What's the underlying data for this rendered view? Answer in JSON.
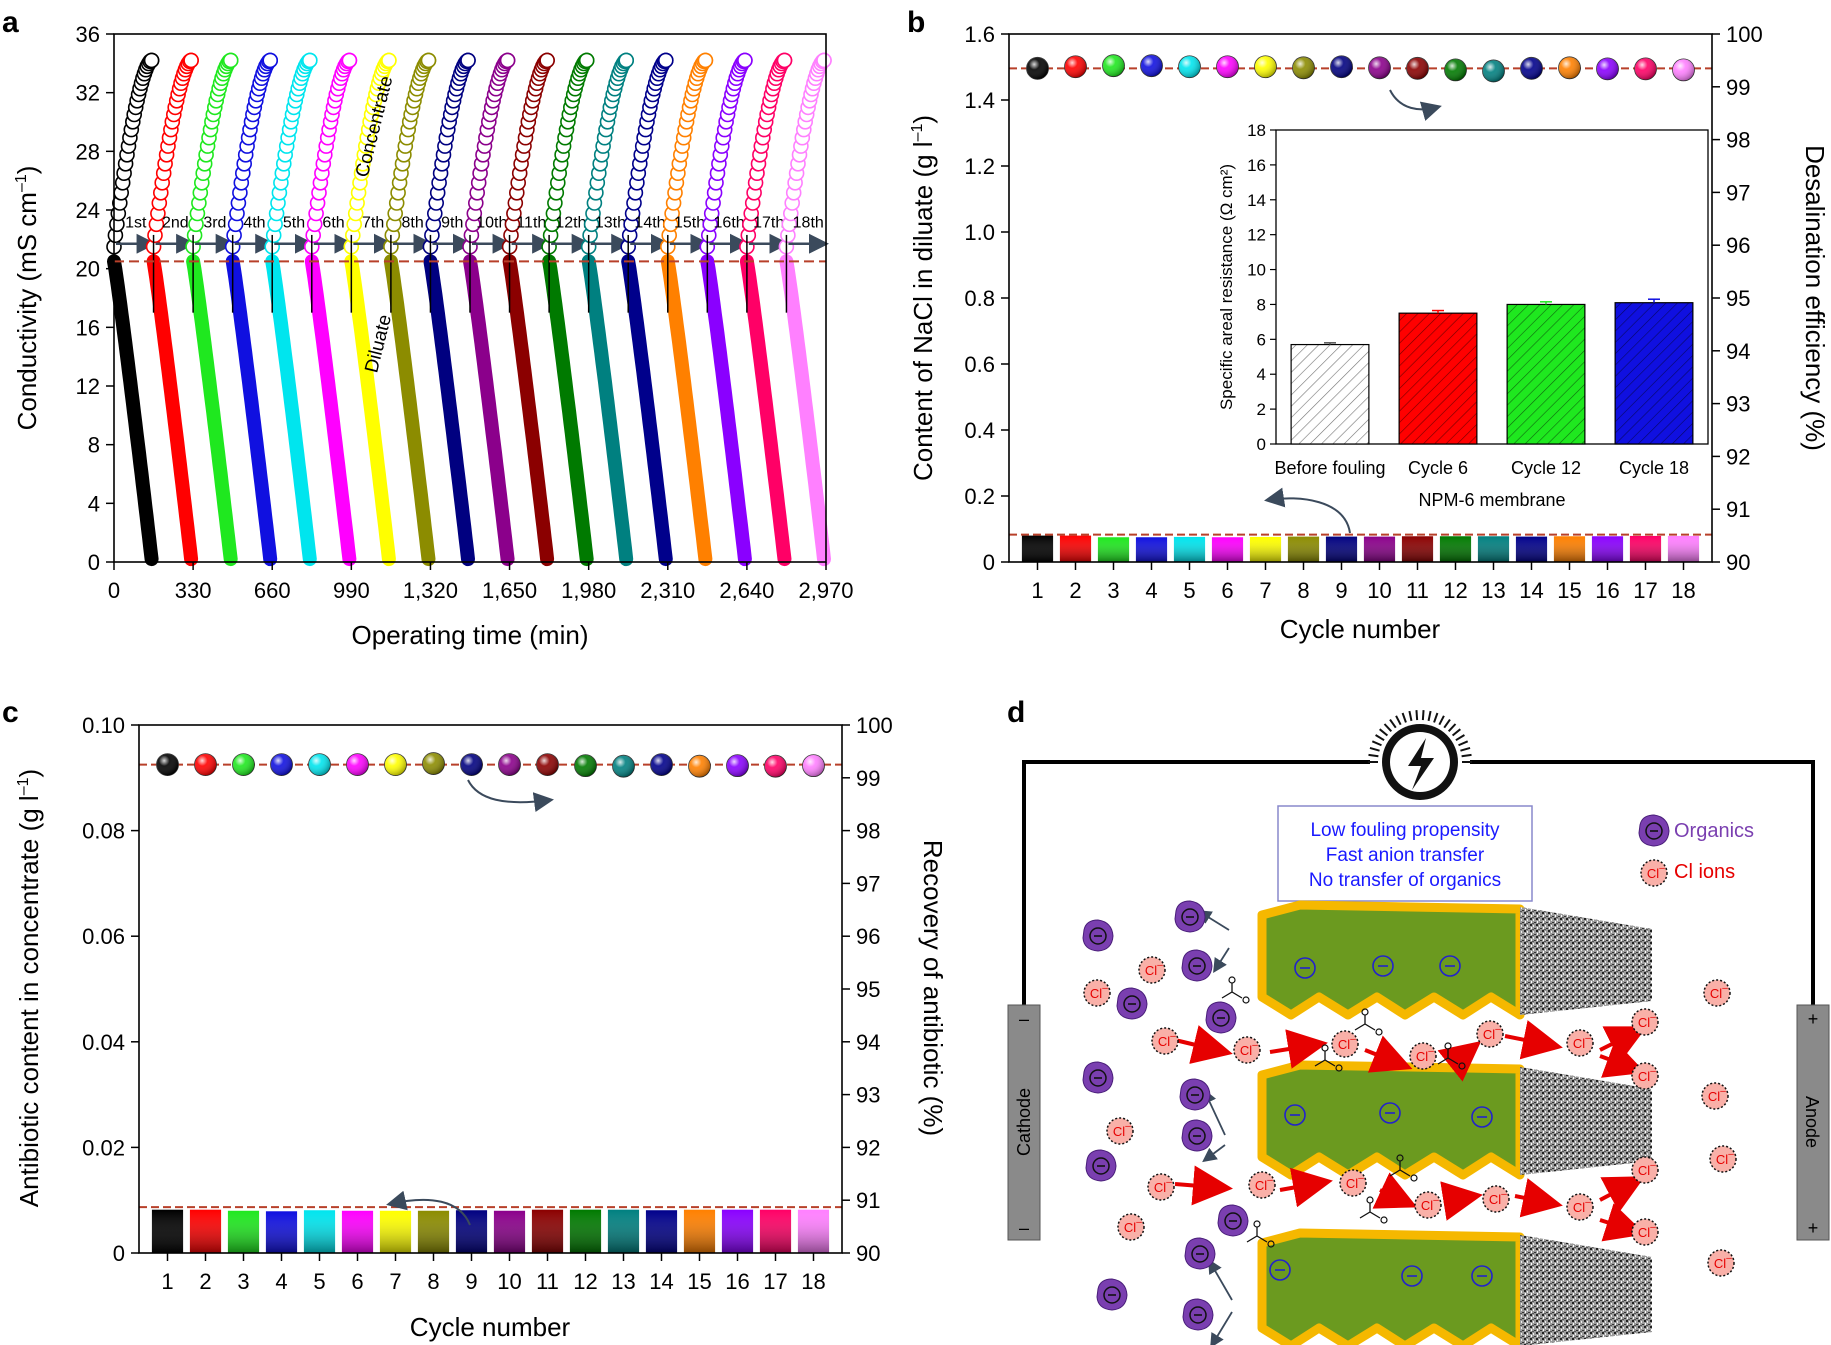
{
  "figure": {
    "panel_labels": [
      "a",
      "b",
      "c",
      "d"
    ]
  },
  "palette": [
    "#000000",
    "#ff0000",
    "#1fe81f",
    "#1010e0",
    "#00e5ee",
    "#ff00ff",
    "#ffff00",
    "#8c8c00",
    "#000080",
    "#8b008b",
    "#8b0000",
    "#007a00",
    "#008080",
    "#00008b",
    "#ff8000",
    "#8a00ff",
    "#ff0066",
    "#ff80ff"
  ],
  "chart_data": [
    {
      "id": "a",
      "type": "line",
      "xlabel": "Operating time (min)",
      "ylabel": "Conductivity (mS cm",
      "ylabel_sup": "–1",
      "ylabel_close": ")",
      "xlim": [
        0,
        2970
      ],
      "ylim": [
        0,
        36
      ],
      "xticks": [
        0,
        330,
        660,
        990,
        1320,
        1650,
        1980,
        2310,
        2640,
        2970
      ],
      "xtick_labels": [
        "0",
        "330",
        "660",
        "990",
        "1,320",
        "1,650",
        "1,980",
        "2,310",
        "2,640",
        "2,970"
      ],
      "yticks": [
        0,
        4,
        8,
        12,
        16,
        20,
        24,
        28,
        32,
        36
      ],
      "cycle_labels": [
        "1st",
        "2nd",
        "3rd",
        "4th",
        "5th",
        "6th",
        "7th",
        "8th",
        "9th",
        "10th",
        "11th",
        "12th",
        "13th",
        "14th",
        "15th",
        "16th",
        "17th",
        "18th"
      ],
      "cycle_duration_min": 165,
      "concentrate": {
        "start": 21.5,
        "end": 34.2
      },
      "diluate": {
        "start": 20.5,
        "end": 0.2
      },
      "reference_line_y": 20.5,
      "annotations": {
        "concentrate": "Concentrate",
        "diluate": "Diluate"
      }
    },
    {
      "id": "b",
      "type": "bar",
      "xlabel": "Cycle number",
      "ylabel_left": "Content of NaCl in diluate (g l",
      "ylabel_left_sup": "–1",
      "ylabel_left_close": ")",
      "ylabel_right": "Desalination efficiency (%)",
      "categories": [
        "1",
        "2",
        "3",
        "4",
        "5",
        "6",
        "7",
        "8",
        "9",
        "10",
        "11",
        "12",
        "13",
        "14",
        "15",
        "16",
        "17",
        "18"
      ],
      "ylim_left": [
        0,
        1.6
      ],
      "yticks_left": [
        0,
        0.2,
        0.4,
        0.6,
        0.8,
        1.0,
        1.2,
        1.4,
        1.6
      ],
      "ytick_labels_left": [
        "0",
        "0.2",
        "0.4",
        "0.6",
        "0.8",
        "1.0",
        "1.2",
        "1.4",
        "1.6"
      ],
      "ylim_right": [
        90,
        100
      ],
      "yticks_right": [
        90,
        91,
        92,
        93,
        94,
        95,
        96,
        97,
        98,
        99,
        100
      ],
      "bar_values": [
        0.08,
        0.08,
        0.075,
        0.075,
        0.076,
        0.075,
        0.076,
        0.077,
        0.077,
        0.077,
        0.078,
        0.078,
        0.078,
        0.077,
        0.078,
        0.078,
        0.079,
        0.079
      ],
      "bar_ref_line": 0.083,
      "efficiency_values": [
        99.35,
        99.38,
        99.4,
        99.4,
        99.38,
        99.38,
        99.38,
        99.36,
        99.38,
        99.36,
        99.35,
        99.32,
        99.3,
        99.35,
        99.36,
        99.34,
        99.34,
        99.32
      ],
      "efficiency_ref_line": 99.35,
      "inset": {
        "type": "bar",
        "ylabel": "Specific areal resistance (Ω cm²)",
        "xlabel": "NPM-6 membrane",
        "categories": [
          "Before fouling",
          "Cycle 6",
          "Cycle 12",
          "Cycle 18"
        ],
        "values": [
          5.7,
          7.5,
          8.0,
          8.1
        ],
        "errors": [
          0.1,
          0.15,
          0.15,
          0.2
        ],
        "colors": [
          "#ffffff",
          "#ff0000",
          "#1fe81f",
          "#1010e0"
        ],
        "ylim": [
          0,
          18
        ],
        "yticks": [
          0,
          2,
          4,
          6,
          8,
          10,
          12,
          14,
          16,
          18
        ]
      }
    },
    {
      "id": "c",
      "type": "bar",
      "xlabel": "Cycle number",
      "ylabel_left": "Antibiotic content in concentrate (g l",
      "ylabel_left_sup": "–1",
      "ylabel_left_close": ")",
      "ylabel_right": "Recovery of antibiotic (%)",
      "categories": [
        "1",
        "2",
        "3",
        "4",
        "5",
        "6",
        "7",
        "8",
        "9",
        "10",
        "11",
        "12",
        "13",
        "14",
        "15",
        "16",
        "17",
        "18"
      ],
      "ylim_left": [
        0,
        0.1
      ],
      "yticks_left": [
        0,
        0.02,
        0.04,
        0.06,
        0.08,
        0.1
      ],
      "ytick_labels_left": [
        "0",
        "0.02",
        "0.04",
        "0.06",
        "0.08",
        "0.10"
      ],
      "ylim_right": [
        90,
        100
      ],
      "yticks_right": [
        90,
        91,
        92,
        93,
        94,
        95,
        96,
        97,
        98,
        99,
        100
      ],
      "bar_values": [
        0.0082,
        0.0082,
        0.008,
        0.0079,
        0.0081,
        0.008,
        0.008,
        0.008,
        0.0081,
        0.008,
        0.0082,
        0.0082,
        0.0082,
        0.0081,
        0.0082,
        0.0082,
        0.0082,
        0.0082
      ],
      "bar_ref_line": 0.0087,
      "recovery_values": [
        99.25,
        99.25,
        99.25,
        99.25,
        99.25,
        99.25,
        99.25,
        99.27,
        99.25,
        99.25,
        99.25,
        99.23,
        99.22,
        99.25,
        99.22,
        99.23,
        99.22,
        99.23
      ],
      "recovery_ref_line": 99.25
    }
  ],
  "schematic": {
    "legend_box": [
      "Low fouling propensity",
      "Fast anion transfer",
      "No transfer of organics"
    ],
    "legend_organics": "Organics",
    "legend_cl": "Cl  ions",
    "cathode_label": "Cathode",
    "anode_label": "Anode",
    "cathode_top_sign": "–",
    "cathode_bottom_sign": "–",
    "anode_top_sign": "+",
    "anode_bottom_sign": "+",
    "ion_symbol": "Cl",
    "organic_symbol": "⊖",
    "colors": {
      "membrane": "#6b9a1f",
      "membrane_edge": "#f5b800",
      "organic": "#7a3fb0",
      "ion_fill": "#f9b0a8",
      "arrow": "#e60000",
      "box_text": "#1a1aff",
      "electrode": "#8a8a8a"
    }
  }
}
